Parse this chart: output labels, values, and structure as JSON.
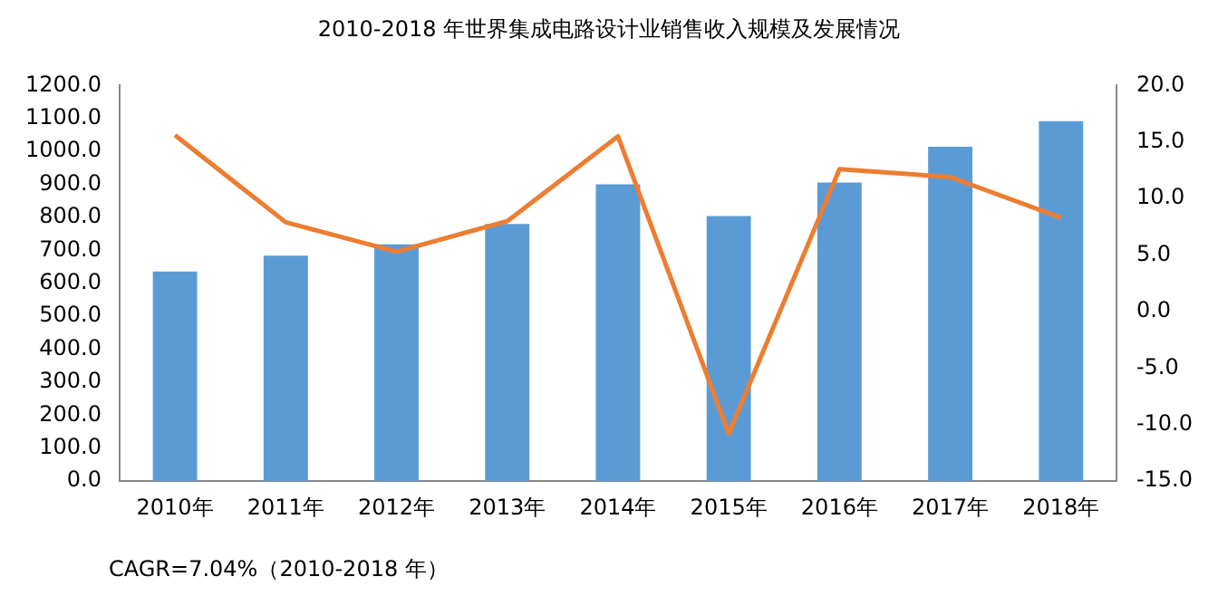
{
  "chart_data": {
    "type": "bar",
    "title": "2010-2018 年世界集成电路设计业销售收入规模及发展情况",
    "categories": [
      "2010年",
      "2011年",
      "2012年",
      "2013年",
      "2014年",
      "2015年",
      "2016年",
      "2017年",
      "2018年"
    ],
    "series": [
      {
        "color": "#5b9bd5",
        "values": [
          636,
          684,
          718,
          780,
          900,
          804,
          906,
          1014,
          1092
        ]
      },
      {
        "type": "line",
        "axis": "y2",
        "color": "#ed7d31",
        "values": [
          15.6,
          7.9,
          5.3,
          8.0,
          15.5,
          -10.8,
          12.6,
          11.9,
          8.3
        ]
      }
    ],
    "ylim": [
      0,
      1200
    ],
    "yticks": [
      {
        "value": 0,
        "label": "0.0"
      },
      {
        "value": 100,
        "label": "100.0"
      },
      {
        "value": 200,
        "label": "200.0"
      },
      {
        "value": 300,
        "label": "300.0"
      },
      {
        "value": 400,
        "label": "400.0"
      },
      {
        "value": 500,
        "label": "500.0"
      },
      {
        "value": 600,
        "label": "600.0"
      },
      {
        "value": 700,
        "label": "700.0"
      },
      {
        "value": 800,
        "label": "800.0"
      },
      {
        "value": 900,
        "label": "900.0"
      },
      {
        "value": 1000,
        "label": "1000.0"
      },
      {
        "value": 1100,
        "label": "1100.0"
      },
      {
        "value": 1200,
        "label": "1200.0"
      }
    ],
    "y2lim": [
      -15,
      20
    ],
    "y2ticks": [
      {
        "value": -15,
        "label": "-15.0"
      },
      {
        "value": -10,
        "label": "-10.0"
      },
      {
        "value": -5,
        "label": "-5.0"
      },
      {
        "value": 0,
        "label": "0.0"
      },
      {
        "value": 5,
        "label": "5.0"
      },
      {
        "value": 10,
        "label": "10.0"
      },
      {
        "value": 15,
        "label": "15.0"
      },
      {
        "value": 20,
        "label": "20.0"
      }
    ],
    "grid": false,
    "legend": false,
    "marker": "none",
    "annotations": [
      "CAGR=7.04%（2010-2018 年）"
    ]
  }
}
